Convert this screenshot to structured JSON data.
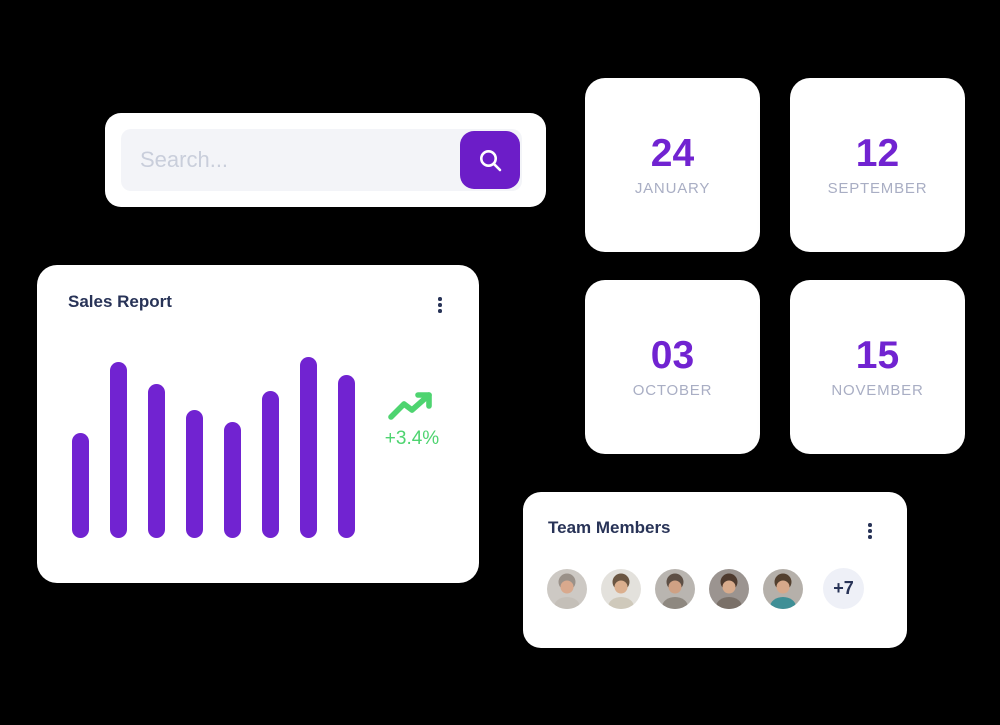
{
  "page": {
    "background": "#000000",
    "card_background": "#FFFFFF"
  },
  "search": {
    "placeholder": "Search...",
    "button_color": "#6C1DC8",
    "icon": "search-icon"
  },
  "date_cards": [
    {
      "day": "24",
      "month": "JANUARY"
    },
    {
      "day": "12",
      "month": "SEPTEMBER"
    },
    {
      "day": "03",
      "month": "OCTOBER"
    },
    {
      "day": "15",
      "month": "NOVEMBER"
    }
  ],
  "sales_report": {
    "title": "Sales Report",
    "menu_icon": "kebab-menu-icon",
    "chart_data": {
      "type": "bar",
      "values": [
        58,
        97,
        85,
        71,
        64,
        81,
        100,
        90
      ],
      "value_unit": "percent_of_tallest_bar",
      "bar_color": "#7123D1",
      "axes_shown": false,
      "trend": {
        "label": "+3.4%",
        "direction": "up",
        "color": "#4ED470",
        "icon": "trend-up-icon"
      }
    }
  },
  "team": {
    "title": "Team Members",
    "menu_icon": "kebab-menu-icon",
    "overflow_label": "+7",
    "avatars": [
      {
        "name": "avatar-1",
        "bg": "#CDC9C4",
        "hair": "#9A9189",
        "skin": "#D9A98D",
        "shirt": "#C4BFB8"
      },
      {
        "name": "avatar-2",
        "bg": "#E3E1DC",
        "hair": "#6B5642",
        "skin": "#DBAF8E",
        "shirt": "#CFC9BB"
      },
      {
        "name": "avatar-3",
        "bg": "#B9B5B0",
        "hair": "#5D4F45",
        "skin": "#CFA184",
        "shirt": "#8E8880"
      },
      {
        "name": "avatar-4",
        "bg": "#9B9490",
        "hair": "#4E3A2E",
        "skin": "#D8AB8C",
        "shirt": "#7A7068"
      },
      {
        "name": "avatar-5",
        "bg": "#B5B0AA",
        "hair": "#53402F",
        "skin": "#D6A88A",
        "shirt": "#3F8F96"
      }
    ]
  },
  "colors": {
    "accent_purple": "#7123D1",
    "title_navy": "#283357",
    "muted_gray": "#A9AEC4",
    "green": "#4ED470",
    "input_gray": "#F3F4F8",
    "badge_gray": "#EEF0F7"
  }
}
